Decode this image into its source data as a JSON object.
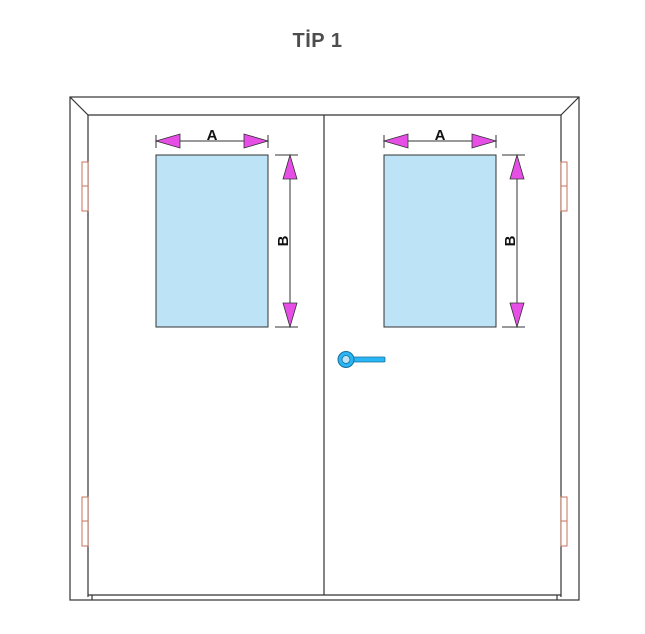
{
  "title": "TİP 1",
  "dimensions": {
    "width_label": "A",
    "height_label": "B"
  },
  "colors": {
    "frame_stroke": "#333333",
    "glass_fill": "#bde3f7",
    "arrow_fill": "#e64ee6",
    "hinge_stroke": "#c8735a",
    "handle_fill": "#29b6f6"
  }
}
